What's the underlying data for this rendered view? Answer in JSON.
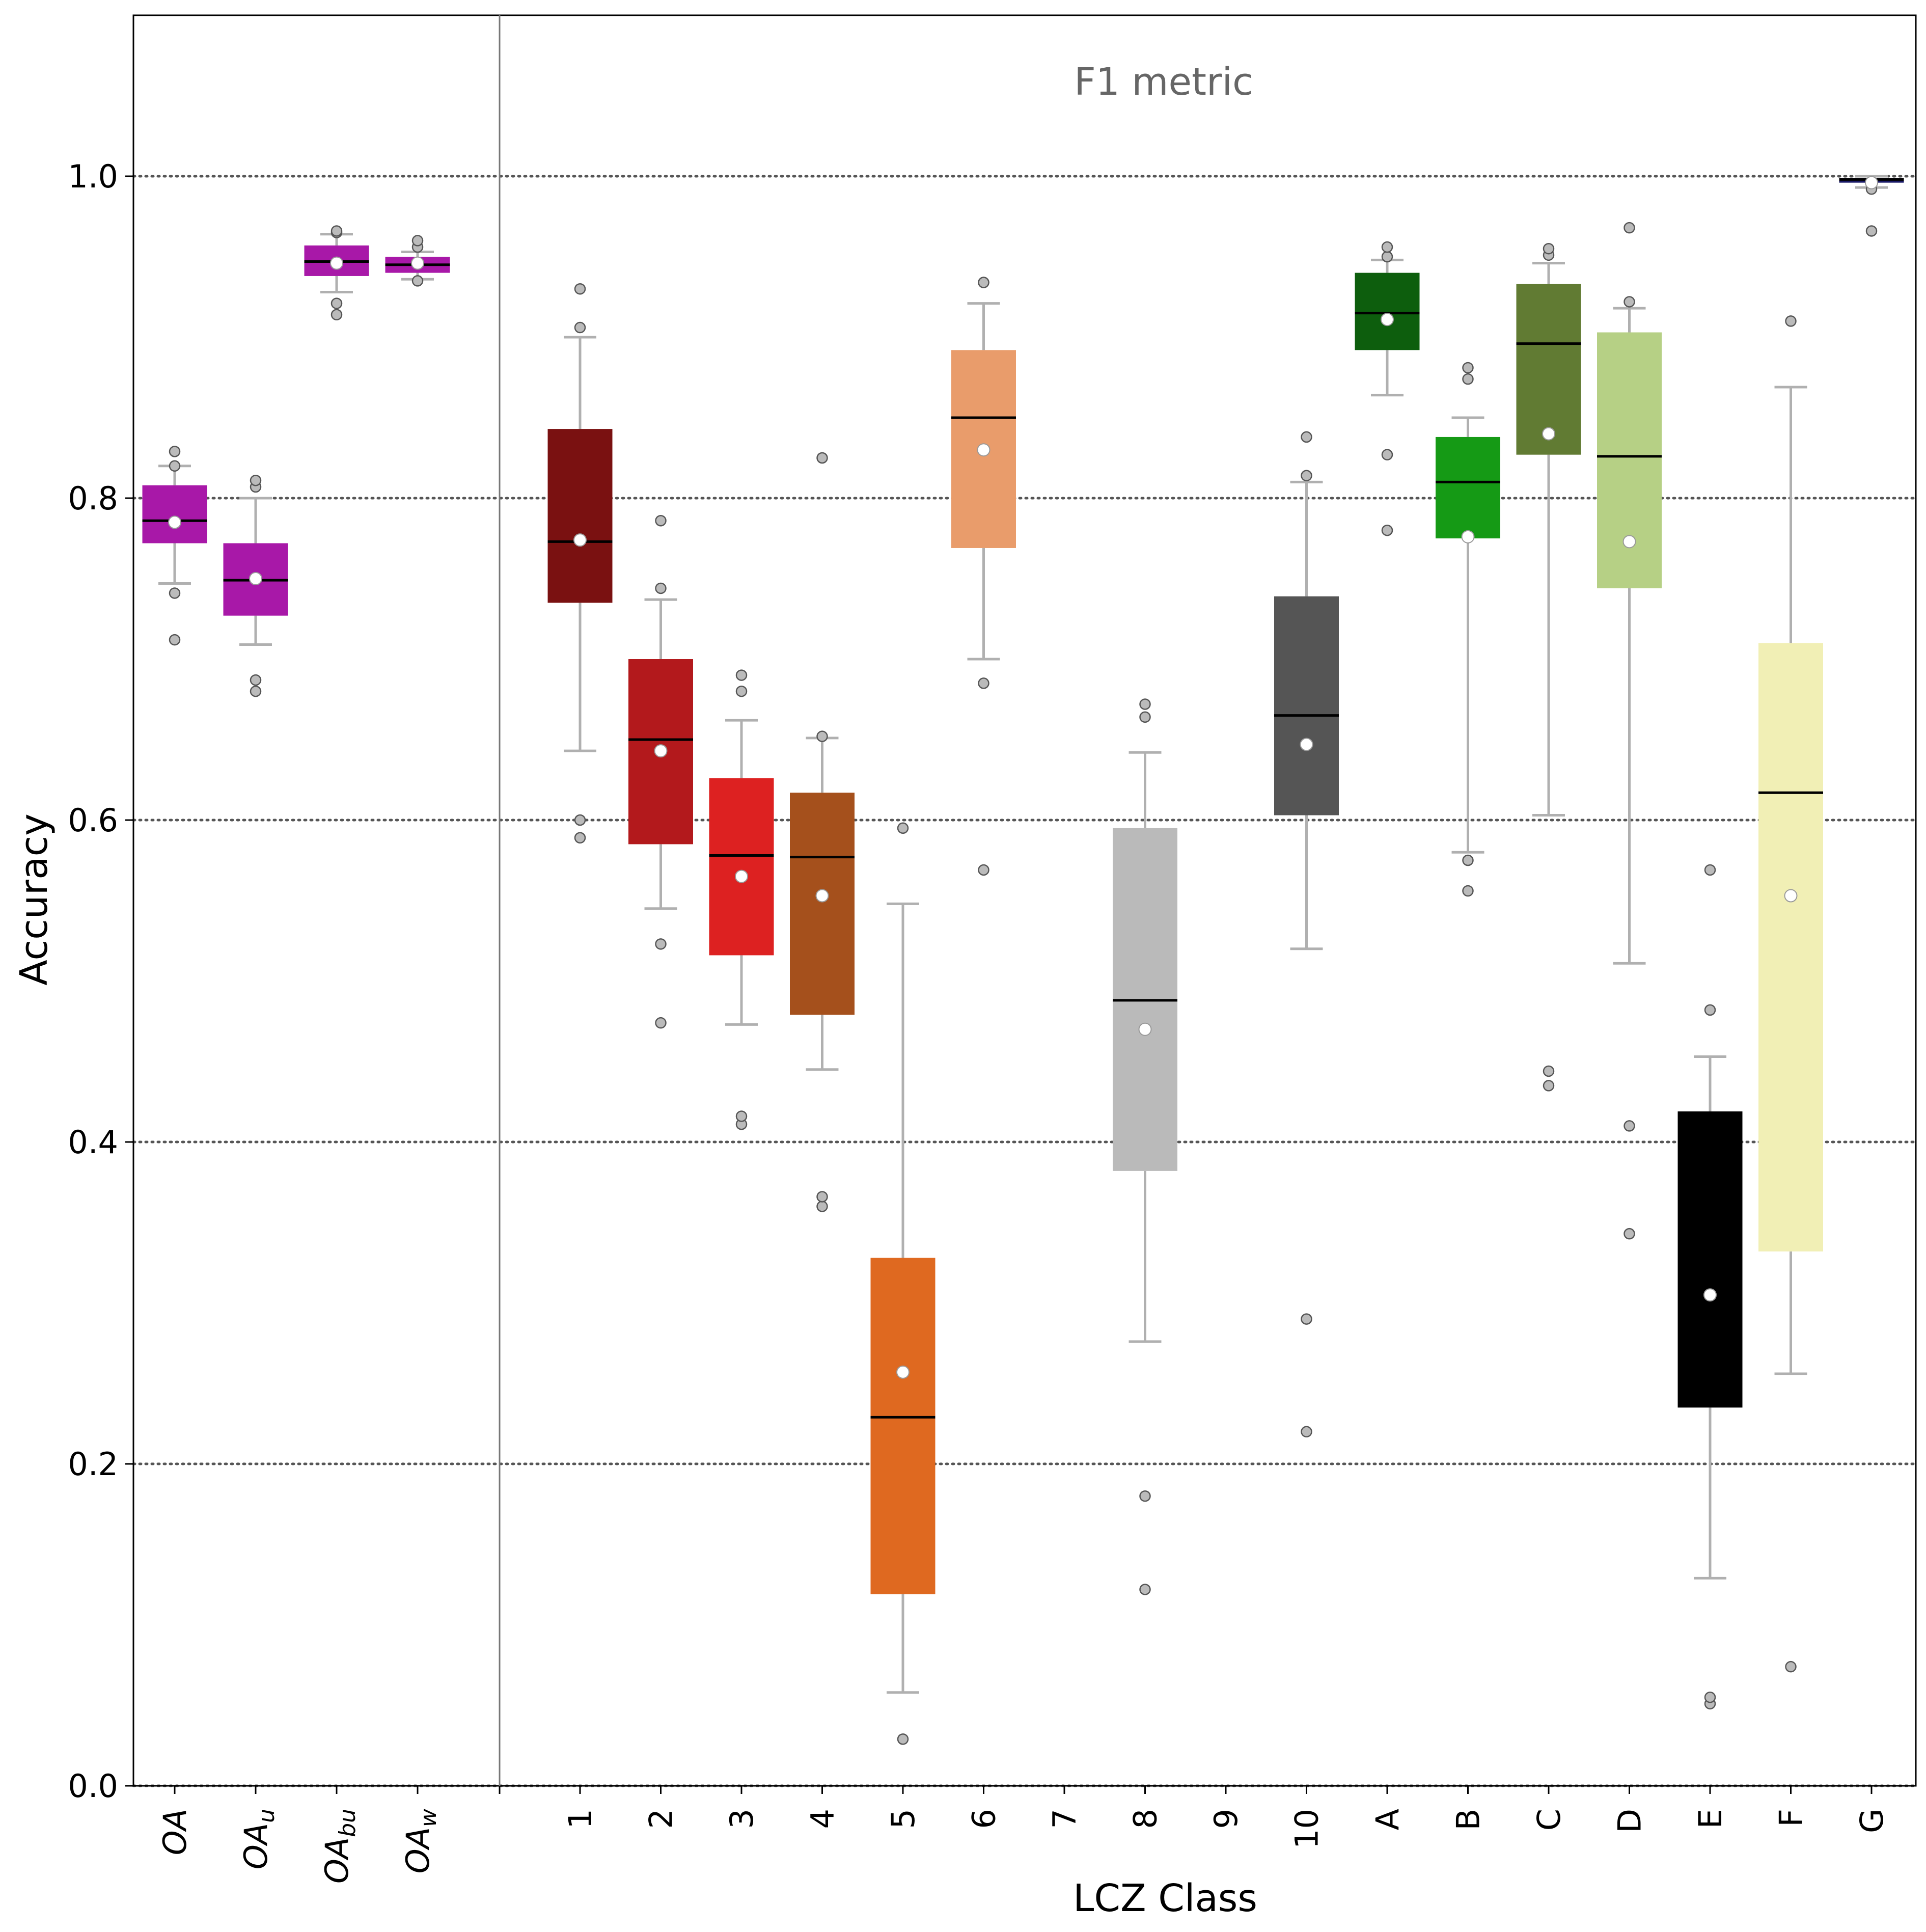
{
  "chart_data": {
    "type": "box",
    "xlabel": "LCZ Class",
    "ylabel": "Accuracy",
    "annotation": "F1 metric",
    "ylim": [
      0.0,
      1.1
    ],
    "yticks": [
      "0.0",
      "0.2",
      "0.4",
      "0.6",
      "0.8",
      "1.0"
    ],
    "grid": "horizontal dotted at 0.2 steps",
    "colors": {
      "whisker": "#b0b0b0",
      "median": "#000000",
      "mean_marker": "#ffffff",
      "flier": "#bbbbbb",
      "grid": "#555555"
    },
    "overall_group": [
      {
        "label": "OA",
        "sub": "",
        "color": "#a818a8",
        "q1": 0.772,
        "median": 0.786,
        "q3": 0.808,
        "whislo": 0.747,
        "whishi": 0.82,
        "mean": 0.785,
        "fliers": [
          0.712,
          0.741,
          0.82,
          0.829
        ]
      },
      {
        "label": "OA",
        "sub": "u",
        "color": "#a818a8",
        "q1": 0.727,
        "median": 0.749,
        "q3": 0.772,
        "whislo": 0.709,
        "whishi": 0.8,
        "mean": 0.75,
        "fliers": [
          0.68,
          0.687,
          0.807,
          0.811
        ]
      },
      {
        "label": "OA",
        "sub": "bu",
        "color": "#a818a8",
        "q1": 0.938,
        "median": 0.947,
        "q3": 0.957,
        "whislo": 0.928,
        "whishi": 0.964,
        "mean": 0.946,
        "fliers": [
          0.914,
          0.921,
          0.965,
          0.966
        ]
      },
      {
        "label": "OA",
        "sub": "w",
        "color": "#a818a8",
        "q1": 0.94,
        "median": 0.945,
        "q3": 0.95,
        "whislo": 0.936,
        "whishi": 0.953,
        "mean": 0.946,
        "fliers": [
          0.935,
          0.956,
          0.96
        ]
      }
    ],
    "classes": [
      {
        "label": "1",
        "color": "#7a1111",
        "q1": 0.735,
        "median": 0.773,
        "q3": 0.843,
        "whislo": 0.643,
        "whishi": 0.9,
        "mean": 0.774,
        "fliers": [
          0.589,
          0.6,
          0.906,
          0.93
        ]
      },
      {
        "label": "2",
        "color": "#b3191c",
        "q1": 0.585,
        "median": 0.65,
        "q3": 0.7,
        "whislo": 0.545,
        "whishi": 0.737,
        "mean": 0.643,
        "fliers": [
          0.474,
          0.523,
          0.744,
          0.786
        ]
      },
      {
        "label": "3",
        "color": "#dd2121",
        "q1": 0.516,
        "median": 0.578,
        "q3": 0.626,
        "whislo": 0.473,
        "whishi": 0.662,
        "mean": 0.565,
        "fliers": [
          0.411,
          0.416,
          0.68,
          0.69
        ]
      },
      {
        "label": "4",
        "color": "#a5501c",
        "q1": 0.479,
        "median": 0.577,
        "q3": 0.617,
        "whislo": 0.445,
        "whishi": 0.651,
        "mean": 0.553,
        "fliers": [
          0.36,
          0.366,
          0.652,
          0.825
        ]
      },
      {
        "label": "5",
        "color": "#df6920",
        "q1": 0.119,
        "median": 0.229,
        "q3": 0.328,
        "whislo": 0.058,
        "whishi": 0.548,
        "mean": 0.257,
        "fliers": [
          0.029,
          0.595
        ]
      },
      {
        "label": "6",
        "color": "#e99c6b",
        "q1": 0.769,
        "median": 0.85,
        "q3": 0.892,
        "whislo": 0.7,
        "whishi": 0.921,
        "mean": 0.83,
        "fliers": [
          0.569,
          0.685,
          0.934,
          0.934
        ]
      },
      {
        "label": "7",
        "color": "#ffffff",
        "empty": true
      },
      {
        "label": "8",
        "color": "#bababa",
        "q1": 0.382,
        "median": 0.488,
        "q3": 0.595,
        "whislo": 0.276,
        "whishi": 0.642,
        "mean": 0.47,
        "fliers": [
          0.122,
          0.18,
          0.664,
          0.672
        ]
      },
      {
        "label": "9",
        "color": "#ffffff",
        "empty": true
      },
      {
        "label": "10",
        "color": "#555555",
        "q1": 0.603,
        "median": 0.665,
        "q3": 0.739,
        "whislo": 0.52,
        "whishi": 0.81,
        "mean": 0.647,
        "fliers": [
          0.22,
          0.29,
          0.814,
          0.838
        ]
      },
      {
        "label": "A",
        "color": "#0d5e0d",
        "q1": 0.892,
        "median": 0.915,
        "q3": 0.94,
        "whislo": 0.864,
        "whishi": 0.948,
        "mean": 0.911,
        "fliers": [
          0.78,
          0.827,
          0.95,
          0.956
        ]
      },
      {
        "label": "B",
        "color": "#159a15",
        "q1": 0.775,
        "median": 0.81,
        "q3": 0.838,
        "whislo": 0.58,
        "whishi": 0.85,
        "mean": 0.776,
        "fliers": [
          0.556,
          0.575,
          0.874,
          0.881
        ]
      },
      {
        "label": "C",
        "color": "#617b33",
        "q1": 0.827,
        "median": 0.896,
        "q3": 0.933,
        "whislo": 0.603,
        "whishi": 0.946,
        "mean": 0.84,
        "fliers": [
          0.435,
          0.444,
          0.951,
          0.955
        ]
      },
      {
        "label": "D",
        "color": "#b6d085",
        "q1": 0.744,
        "median": 0.826,
        "q3": 0.903,
        "whislo": 0.511,
        "whishi": 0.918,
        "mean": 0.773,
        "fliers": [
          0.343,
          0.41,
          0.922,
          0.968
        ]
      },
      {
        "label": "E",
        "color": "#000000",
        "q1": 0.235,
        "median": 0.27,
        "q3": 0.419,
        "whislo": 0.129,
        "whishi": 0.453,
        "mean": 0.305,
        "fliers": [
          0.051,
          0.055,
          0.482,
          0.569
        ]
      },
      {
        "label": "F",
        "color": "#f1efb5",
        "q1": 0.332,
        "median": 0.617,
        "q3": 0.71,
        "whislo": 0.256,
        "whishi": 0.869,
        "mean": 0.553,
        "fliers": [
          0.074,
          0.91
        ]
      },
      {
        "label": "G",
        "color": "#1a1a66",
        "q1": 0.996,
        "median": 0.998,
        "q3": 0.999,
        "whislo": 0.993,
        "whishi": 1.0,
        "mean": 0.996,
        "fliers": [
          0.966,
          0.992
        ]
      }
    ]
  }
}
